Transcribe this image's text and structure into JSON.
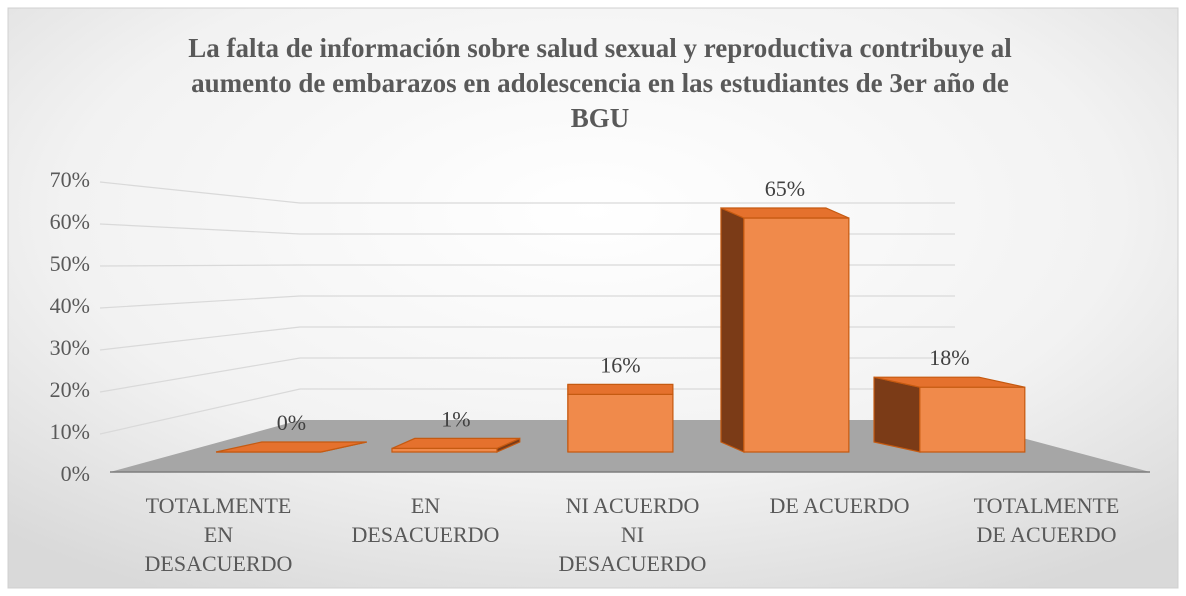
{
  "chart_data": {
    "type": "bar3d",
    "title": "La falta de información sobre salud sexual y reproductiva contribuye al aumento de embarazos en adolescencia en las estudiantes de 3er año de BGU",
    "categories": [
      "TOTALMENTE EN DESACUERDO",
      "EN DESACUERDO",
      "NI ACUERDO NI DESACUERDO",
      "DE ACUERDO",
      "TOTALMENTE DE ACUERDO"
    ],
    "values": [
      0,
      1,
      16,
      65,
      18
    ],
    "value_labels": [
      "0%",
      "1%",
      "16%",
      "65%",
      "18%"
    ],
    "color": "#f08a4b",
    "ylim": [
      0,
      70
    ],
    "yticks": [
      {
        "value": 0,
        "label": "0%"
      },
      {
        "value": 10,
        "label": "10%"
      },
      {
        "value": 20,
        "label": "20%"
      },
      {
        "value": 30,
        "label": "30%"
      },
      {
        "value": 40,
        "label": "40%"
      },
      {
        "value": 50,
        "label": "50%"
      },
      {
        "value": 60,
        "label": "60%"
      },
      {
        "value": 70,
        "label": "70%"
      }
    ],
    "grid": true
  }
}
